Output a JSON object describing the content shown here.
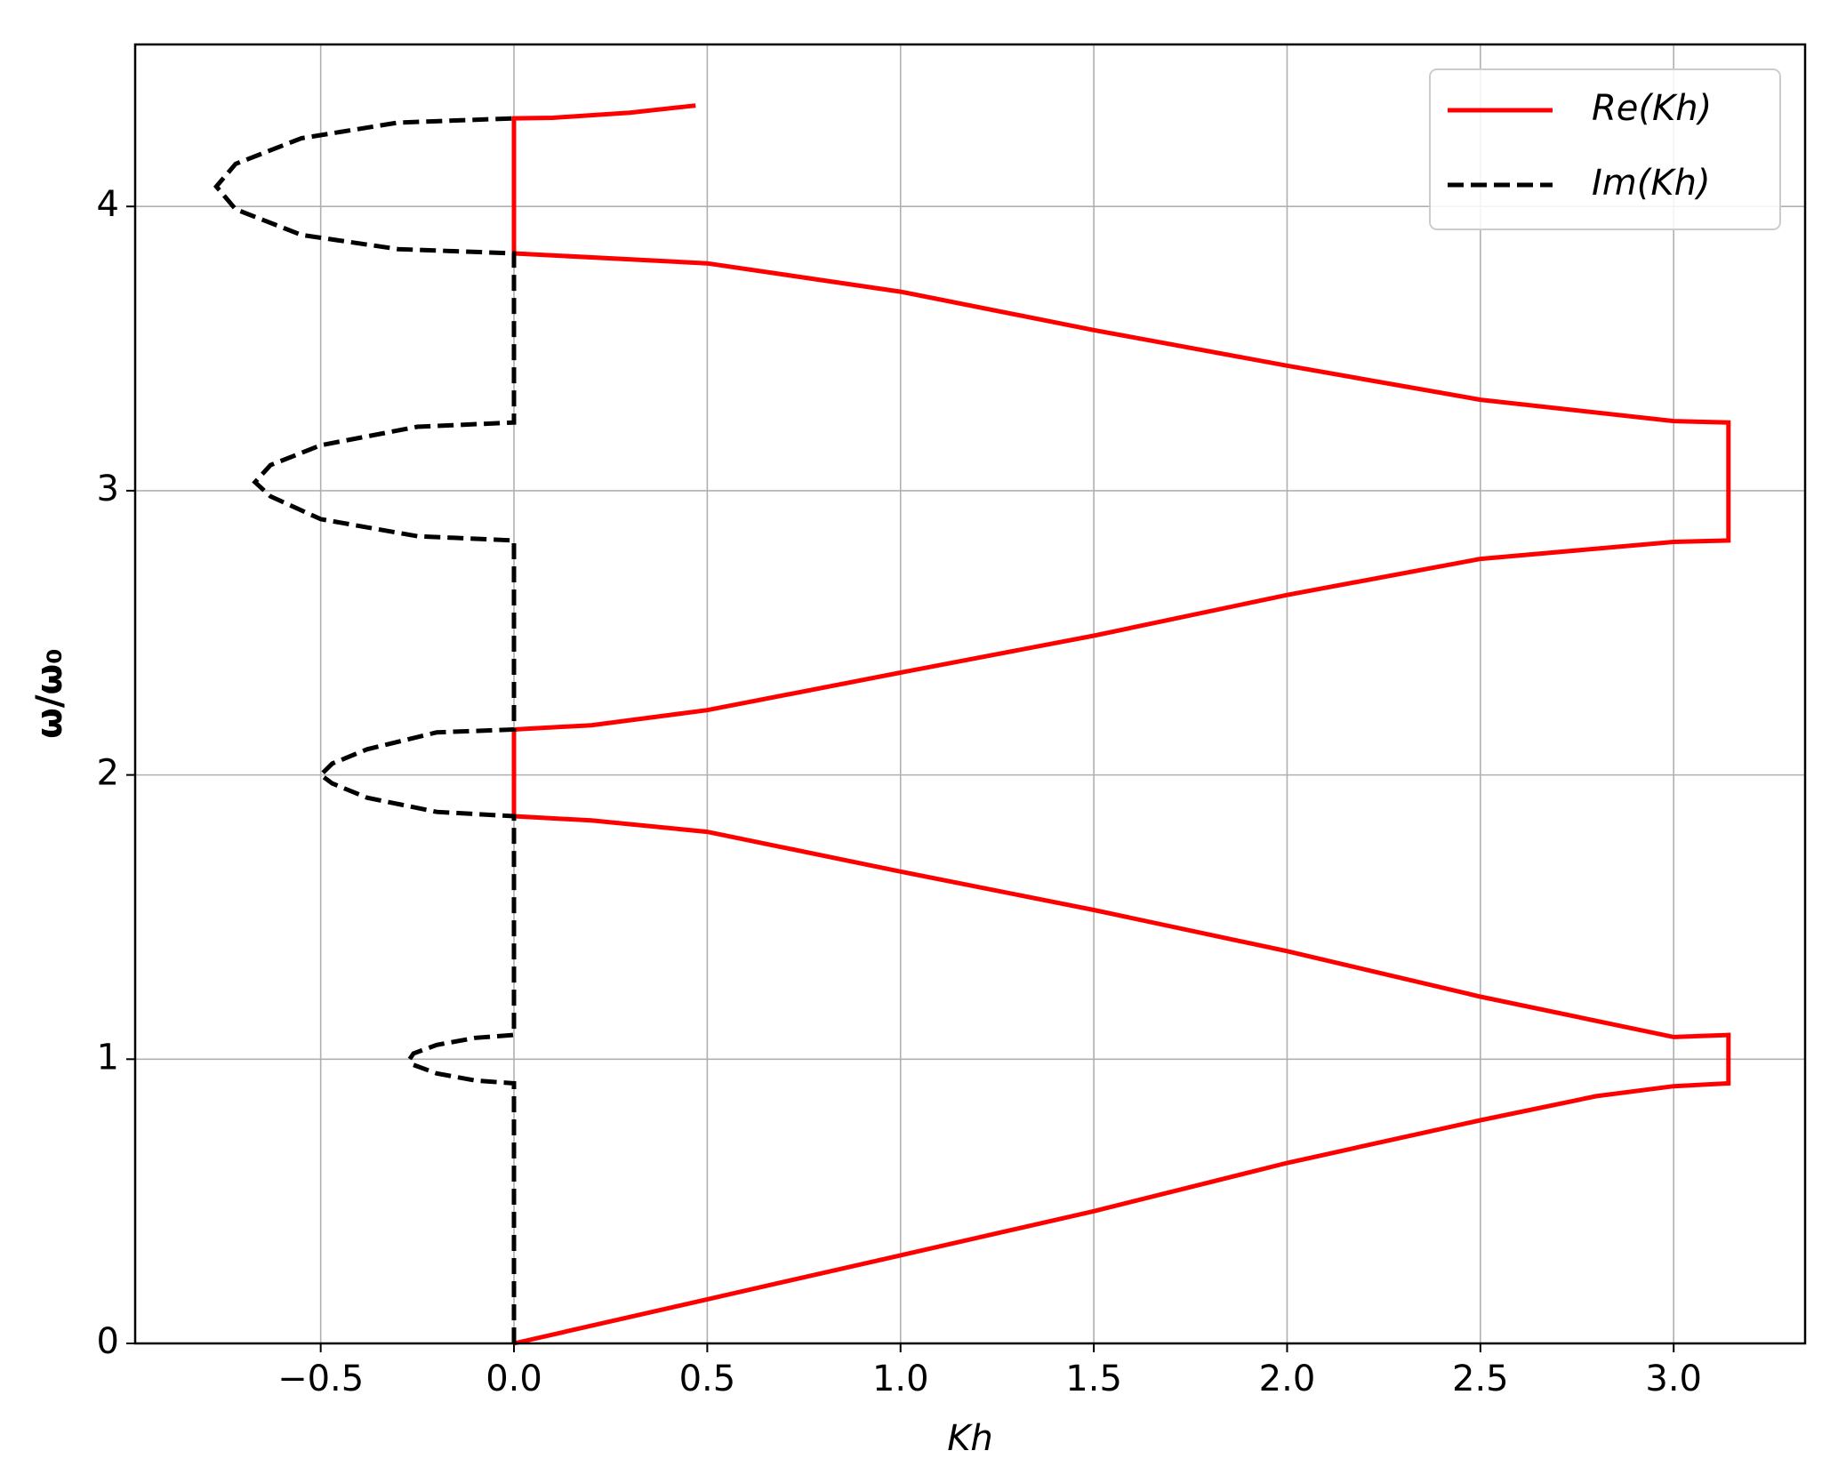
{
  "chart_data": {
    "type": "line",
    "xlabel": "Kh",
    "ylabel": "ω/ω₀",
    "xlim": [
      -0.98,
      3.34
    ],
    "ylim": [
      0,
      4.57
    ],
    "xticks": [
      {
        "value": -0.5,
        "label": "−0.5"
      },
      {
        "value": 0,
        "label": "0.0"
      },
      {
        "value": 0.5,
        "label": "0.5"
      },
      {
        "value": 1,
        "label": "1.0"
      },
      {
        "value": 1.5,
        "label": "1.5"
      },
      {
        "value": 2,
        "label": "2.0"
      },
      {
        "value": 2.5,
        "label": "2.5"
      },
      {
        "value": 3,
        "label": "3.0"
      }
    ],
    "yticks": [
      0,
      1,
      2,
      3,
      4
    ],
    "grid": true,
    "legend": "upper right",
    "series": [
      {
        "name": "Re(Kh)",
        "color": "#ff0000",
        "linestyle": "solid",
        "x": [
          0,
          0.5,
          1.0,
          1.5,
          2.0,
          2.5,
          2.8,
          3.0,
          3.1416,
          3.1416,
          3.0,
          2.5,
          2.0,
          1.5,
          1.0,
          0.5,
          0.2,
          0,
          0,
          0.2,
          0.5,
          1.0,
          1.5,
          2.0,
          2.5,
          3.0,
          3.1416,
          3.1416,
          3.0,
          2.5,
          2.0,
          1.5,
          1.0,
          0.5,
          0,
          0,
          0.1,
          0.3,
          0.47
        ],
        "values": [
          0,
          0.155,
          0.31,
          0.465,
          0.635,
          0.785,
          0.87,
          0.905,
          0.915,
          1.085,
          1.078,
          1.22,
          1.38,
          1.525,
          1.66,
          1.8,
          1.84,
          1.855,
          2.16,
          2.175,
          2.228,
          2.36,
          2.49,
          2.633,
          2.76,
          2.82,
          2.825,
          3.24,
          3.245,
          3.32,
          3.44,
          3.565,
          3.7,
          3.8,
          3.835,
          4.31,
          4.312,
          4.33,
          4.355
        ]
      },
      {
        "name": "Im(Kh)",
        "color": "#000000",
        "linestyle": "dashed",
        "x": [
          0,
          0,
          -0.1,
          -0.2,
          -0.26,
          -0.27,
          -0.26,
          -0.2,
          -0.1,
          0,
          0,
          -0.2,
          -0.38,
          -0.47,
          -0.5,
          -0.47,
          -0.38,
          -0.2,
          0,
          0,
          -0.25,
          -0.5,
          -0.63,
          -0.67,
          -0.63,
          -0.5,
          -0.25,
          0,
          0,
          -0.3,
          -0.55,
          -0.72,
          -0.77,
          -0.72,
          -0.55,
          -0.3,
          0
        ],
        "values": [
          0,
          0.915,
          0.925,
          0.95,
          0.98,
          1.0,
          1.02,
          1.05,
          1.075,
          1.085,
          1.855,
          1.87,
          1.92,
          1.97,
          2.0,
          2.04,
          2.09,
          2.15,
          2.16,
          2.825,
          2.84,
          2.9,
          2.98,
          3.03,
          3.09,
          3.16,
          3.225,
          3.24,
          3.835,
          3.85,
          3.9,
          3.99,
          4.07,
          4.15,
          4.24,
          4.295,
          4.31
        ]
      }
    ]
  }
}
